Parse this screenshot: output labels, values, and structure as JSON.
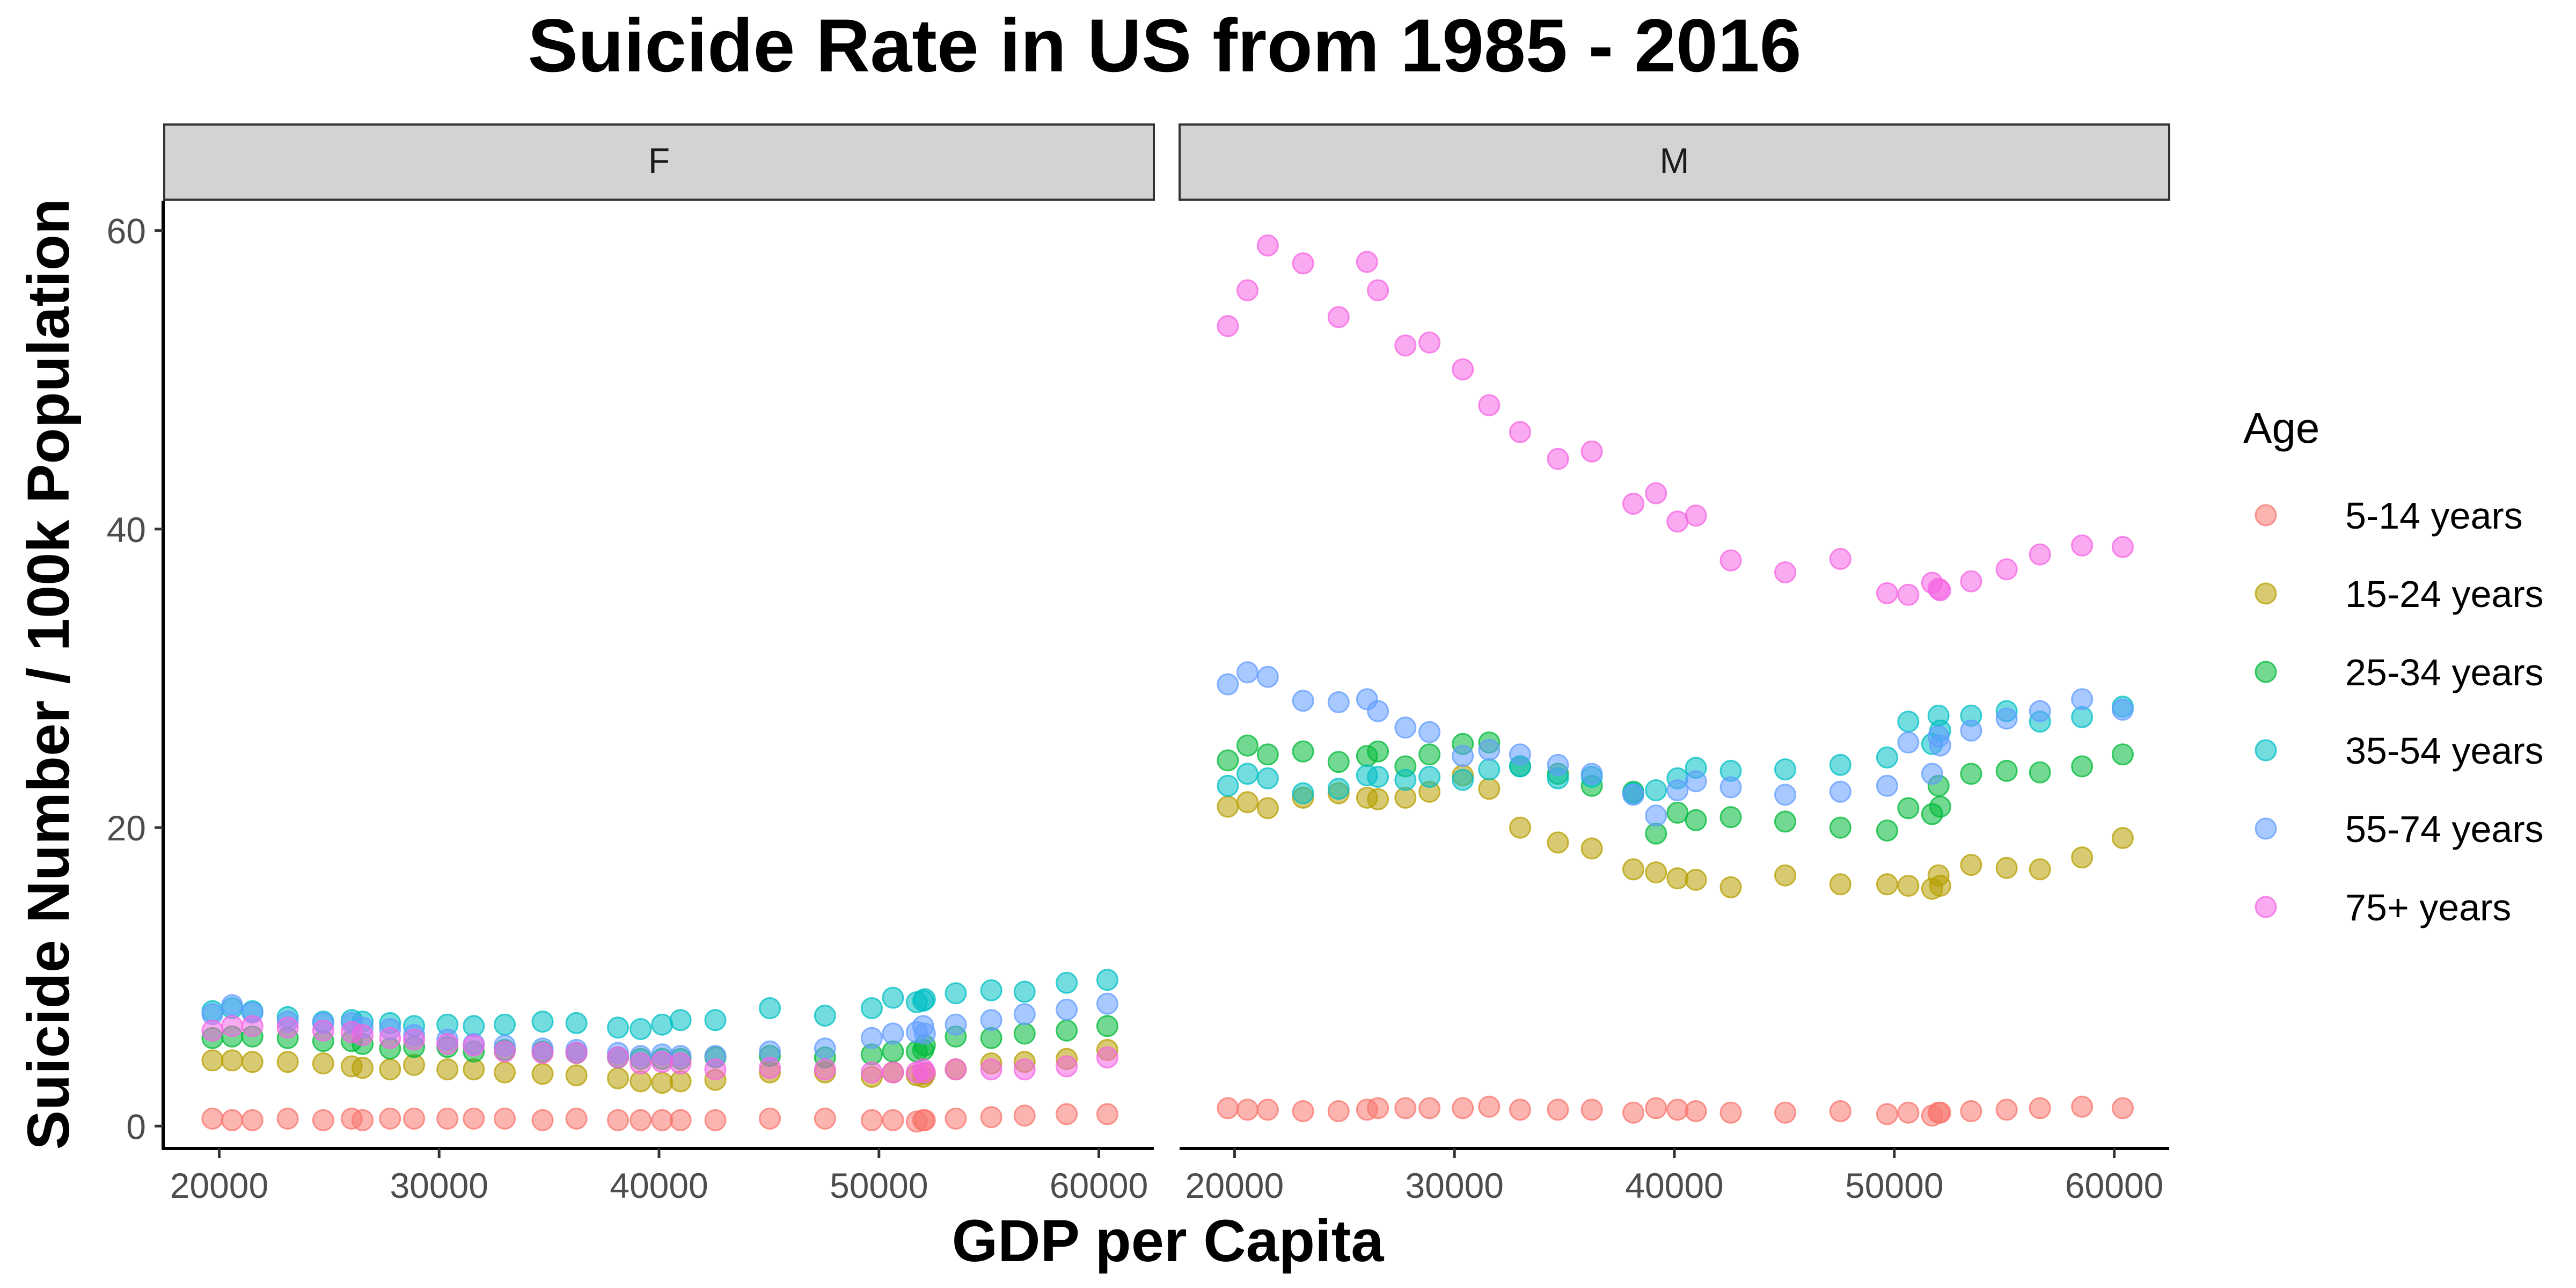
{
  "chart_data": {
    "type": "scatter",
    "title": "Suicide Rate in US from 1985 - 2016",
    "xlabel": "GDP per Capita",
    "ylabel": "Suicide Number / 100k Population",
    "xlim": [
      17500,
      62500
    ],
    "ylim": [
      -1.5,
      62
    ],
    "x_ticks": [
      20000,
      30000,
      40000,
      50000,
      60000
    ],
    "y_ticks": [
      0,
      20,
      40,
      60
    ],
    "grid": false,
    "legend_position": "right",
    "legend_title": "Age",
    "facets": [
      "F",
      "M"
    ],
    "gdp_per_capita": [
      19693,
      20588,
      21509,
      23116,
      24731,
      26023,
      26519,
      27769,
      28862,
      30378,
      31575,
      32985,
      34705,
      36244,
      38132,
      39164,
      40142,
      40979,
      42562,
      45039,
      47547,
      49673,
      50638,
      51721,
      52012,
      52088,
      53492,
      55108,
      56624,
      58537,
      60387
    ],
    "series": [
      {
        "name": "5-14 years",
        "color": "#F8766D",
        "F": [
          0.5,
          0.4,
          0.4,
          0.5,
          0.4,
          0.5,
          0.4,
          0.5,
          0.5,
          0.5,
          0.5,
          0.5,
          0.4,
          0.5,
          0.4,
          0.4,
          0.4,
          0.4,
          0.4,
          0.5,
          0.5,
          0.4,
          0.4,
          0.3,
          0.4,
          0.4,
          0.5,
          0.6,
          0.7,
          0.8,
          0.8
        ],
        "M": [
          1.2,
          1.1,
          1.1,
          1.0,
          1.0,
          1.1,
          1.2,
          1.2,
          1.2,
          1.2,
          1.3,
          1.1,
          1.1,
          1.1,
          0.9,
          1.2,
          1.1,
          1.0,
          0.9,
          0.9,
          1.0,
          0.8,
          0.9,
          0.7,
          0.9,
          0.9,
          1.0,
          1.1,
          1.2,
          1.3,
          1.2
        ]
      },
      {
        "name": "15-24 years",
        "color": "#B79F00",
        "F": [
          4.4,
          4.4,
          4.3,
          4.3,
          4.2,
          4.0,
          3.9,
          3.8,
          4.1,
          3.8,
          3.8,
          3.6,
          3.5,
          3.4,
          3.2,
          3.0,
          2.9,
          3.0,
          3.1,
          3.6,
          3.6,
          3.3,
          3.6,
          3.4,
          3.3,
          3.5,
          3.8,
          4.2,
          4.3,
          4.5,
          5.1
        ],
        "M": [
          21.4,
          21.7,
          21.3,
          22.0,
          22.3,
          22.0,
          21.9,
          22.0,
          22.4,
          23.5,
          22.6,
          20.0,
          19.0,
          18.6,
          17.2,
          17.0,
          16.6,
          16.5,
          16.0,
          16.8,
          16.2,
          16.2,
          16.1,
          15.9,
          16.8,
          16.1,
          17.5,
          17.3,
          17.2,
          18.0,
          19.3
        ]
      },
      {
        "name": "25-34 years",
        "color": "#00BA38",
        "F": [
          5.9,
          6.0,
          6.0,
          5.9,
          5.7,
          5.7,
          5.5,
          5.2,
          5.3,
          5.3,
          5.0,
          5.1,
          5.0,
          4.9,
          4.6,
          4.5,
          4.5,
          4.5,
          4.6,
          4.7,
          4.6,
          4.8,
          5.0,
          5.0,
          5.1,
          5.4,
          6.0,
          5.9,
          6.2,
          6.4,
          6.7
        ],
        "M": [
          24.5,
          25.5,
          24.9,
          25.1,
          24.4,
          24.8,
          25.1,
          24.1,
          24.9,
          25.6,
          25.7,
          24.1,
          23.6,
          22.8,
          22.4,
          19.6,
          21.0,
          20.5,
          20.7,
          20.4,
          20.0,
          19.8,
          21.3,
          20.9,
          22.8,
          21.4,
          23.6,
          23.8,
          23.7,
          24.1,
          24.9
        ]
      },
      {
        "name": "35-54 years",
        "color": "#00BFC4",
        "F": [
          7.7,
          7.9,
          7.7,
          7.3,
          7.0,
          7.1,
          7.0,
          6.9,
          6.7,
          6.8,
          6.7,
          6.8,
          7.0,
          6.9,
          6.6,
          6.5,
          6.8,
          7.1,
          7.1,
          7.9,
          7.4,
          7.9,
          8.6,
          8.3,
          8.4,
          8.5,
          8.9,
          9.1,
          9.0,
          9.6,
          9.8
        ],
        "M": [
          22.8,
          23.6,
          23.3,
          22.3,
          22.6,
          23.5,
          23.4,
          23.2,
          23.4,
          23.2,
          23.9,
          24.1,
          23.3,
          23.4,
          22.3,
          22.5,
          23.3,
          24.0,
          23.8,
          23.9,
          24.2,
          24.7,
          27.1,
          25.6,
          27.5,
          26.5,
          27.5,
          27.8,
          27.1,
          27.4,
          28.1
        ]
      },
      {
        "name": "55-74 years",
        "color": "#619CFF",
        "F": [
          7.5,
          8.1,
          7.6,
          7.0,
          6.9,
          6.9,
          6.6,
          6.5,
          6.1,
          5.8,
          5.5,
          5.4,
          5.2,
          5.1,
          4.9,
          4.7,
          4.8,
          4.7,
          4.7,
          5.0,
          5.2,
          5.9,
          6.2,
          6.3,
          6.7,
          6.2,
          6.8,
          7.1,
          7.5,
          7.8,
          8.2
        ],
        "M": [
          29.6,
          30.4,
          30.1,
          28.5,
          28.4,
          28.6,
          27.8,
          26.7,
          26.4,
          24.8,
          25.2,
          24.9,
          24.2,
          23.6,
          22.2,
          20.8,
          22.5,
          23.1,
          22.7,
          22.2,
          22.4,
          22.8,
          25.7,
          23.6,
          26.1,
          25.5,
          26.5,
          27.3,
          27.8,
          28.6,
          27.9
        ]
      },
      {
        "name": "75+ years",
        "color": "#F564E3",
        "F": [
          6.4,
          6.7,
          6.7,
          6.6,
          6.4,
          6.3,
          6.1,
          5.9,
          5.8,
          5.5,
          5.4,
          5.0,
          4.9,
          4.9,
          4.6,
          4.2,
          4.3,
          4.2,
          3.8,
          3.9,
          3.8,
          3.6,
          3.6,
          3.6,
          3.8,
          3.6,
          3.8,
          3.8,
          3.8,
          4.0,
          4.6
        ],
        "M": [
          53.6,
          56.0,
          59.0,
          57.8,
          54.2,
          57.9,
          56.0,
          52.3,
          52.5,
          50.7,
          48.3,
          46.5,
          44.7,
          45.2,
          41.7,
          42.4,
          40.5,
          40.9,
          37.9,
          37.1,
          38.0,
          35.7,
          35.6,
          36.4,
          36.0,
          35.9,
          36.5,
          37.3,
          38.3,
          38.9,
          38.8
        ]
      }
    ]
  }
}
